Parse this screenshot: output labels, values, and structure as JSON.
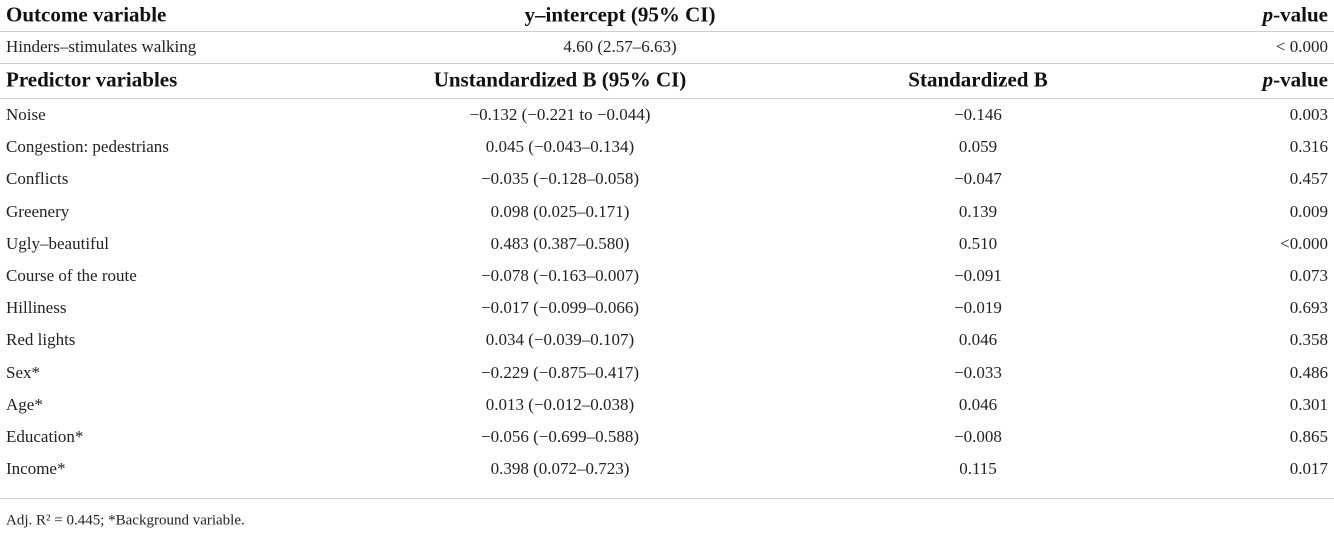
{
  "outcome_header": {
    "label": "Outcome variable",
    "intercept": "y–intercept (95% CI)",
    "p_value": [
      "p",
      "-value"
    ]
  },
  "outcome_row": {
    "label": "Hinders–stimulates walking",
    "intercept": "4.60 (2.57–6.63)",
    "p_value": "< 0.000"
  },
  "predictor_header": {
    "label": "Predictor variables",
    "unstandardized": "Unstandardized B (95% CI)",
    "standardized": "Standardized B",
    "p_value": [
      "p",
      "-value"
    ]
  },
  "rows": [
    [
      "Noise",
      "−0.132 (−0.221 to −0.044)",
      "−0.146",
      "0.003"
    ],
    [
      "Congestion: pedestrians",
      "0.045 (−0.043–0.134)",
      "0.059",
      "0.316"
    ],
    [
      "Conflicts",
      "−0.035 (−0.128–0.058)",
      "−0.047",
      "0.457"
    ],
    [
      "Greenery",
      "0.098 (0.025–0.171)",
      "0.139",
      "0.009"
    ],
    [
      "Ugly–beautiful",
      "0.483 (0.387–0.580)",
      "0.510",
      "<0.000"
    ],
    [
      "Course of the route",
      "−0.078 (−0.163–0.007)",
      "−0.091",
      "0.073"
    ],
    [
      "Hilliness",
      "−0.017 (−0.099–0.066)",
      "−0.019",
      "0.693"
    ],
    [
      "Red lights",
      "0.034 (−0.039–0.107)",
      "0.046",
      "0.358"
    ],
    [
      "Sex*",
      "−0.229 (−0.875–0.417)",
      "−0.033",
      "0.486"
    ],
    [
      "Age*",
      "0.013 (−0.012–0.038)",
      "0.046",
      "0.301"
    ],
    [
      "Education*",
      "−0.056 (−0.699–0.588)",
      "−0.008",
      "0.865"
    ],
    [
      "Income*",
      "0.398 (0.072–0.723)",
      "0.115",
      "0.017"
    ]
  ],
  "footnote": "Adj. R² = 0.445; *Background variable."
}
